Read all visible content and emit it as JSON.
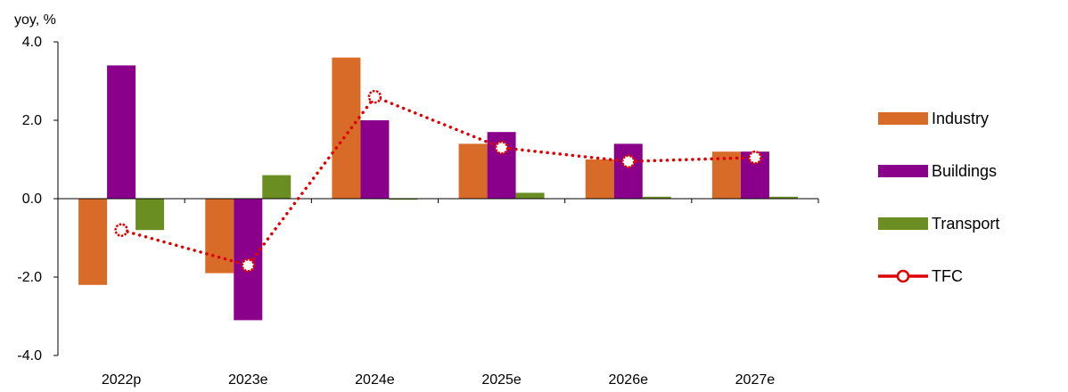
{
  "chart_data": {
    "type": "bar",
    "y_unit_label": "yoy, %",
    "categories": [
      "2022p",
      "2023e",
      "2024e",
      "2025e",
      "2026e",
      "2027e"
    ],
    "ylim": [
      -4.0,
      4.0
    ],
    "yticks": [
      "4.0",
      "2.0",
      "0.0",
      "-2.0",
      "-4.0"
    ],
    "grid": false,
    "legend_position": "right",
    "series": [
      {
        "name": "Industry",
        "kind": "bar",
        "color": "#d86b27",
        "values": [
          -2.2,
          -1.9,
          3.6,
          1.4,
          1.0,
          1.2
        ]
      },
      {
        "name": "Buildings",
        "kind": "bar",
        "color": "#8b008b",
        "values": [
          3.4,
          -3.1,
          2.0,
          1.7,
          1.4,
          1.2
        ]
      },
      {
        "name": "Transport",
        "kind": "bar",
        "color": "#6b8e23",
        "values": [
          -0.8,
          0.6,
          0.0,
          0.15,
          0.05,
          0.05
        ]
      },
      {
        "name": "TFC",
        "kind": "line",
        "color": "#e00000",
        "values": [
          -0.8,
          -1.7,
          2.6,
          1.3,
          0.95,
          1.05
        ]
      }
    ]
  }
}
